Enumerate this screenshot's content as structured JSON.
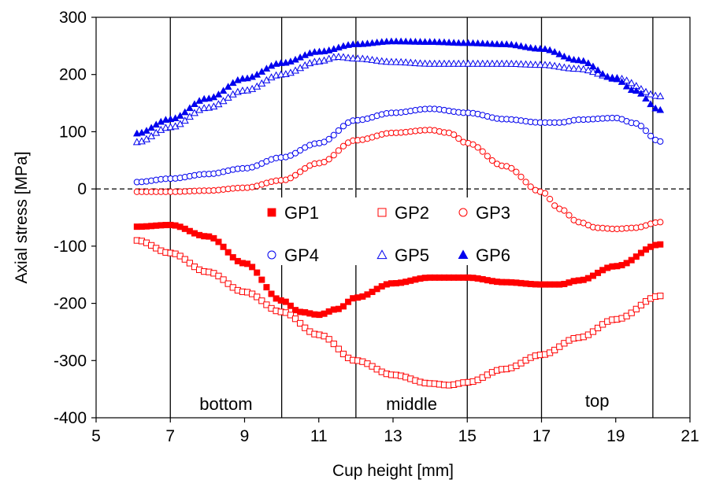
{
  "chart_data": {
    "type": "scatter",
    "title": "",
    "xlabel": "Cup height [mm]",
    "ylabel": "Axial stress [MPa]",
    "xlim": [
      5,
      21
    ],
    "ylim": [
      -400,
      300
    ],
    "xticks": [
      5,
      7,
      9,
      11,
      13,
      15,
      17,
      19,
      21
    ],
    "yticks": [
      300,
      200,
      100,
      0,
      -100,
      -200,
      -300,
      -400
    ],
    "vertical_lines": [
      7,
      10,
      12,
      15,
      17,
      20
    ],
    "zero_line": {
      "y": 0,
      "style": "dashed"
    },
    "regions": [
      {
        "label": "bottom",
        "x": 8.5,
        "y": -375
      },
      {
        "label": "middle",
        "x": 13.5,
        "y": -375
      },
      {
        "label": "top",
        "x": 18.5,
        "y": -370
      }
    ],
    "legend": {
      "placement": "center",
      "columns": 3
    },
    "x_range": [
      6.1,
      20.2
    ],
    "point_count": 110,
    "series": [
      {
        "name": "GP1",
        "color": "#ff0000",
        "marker": "square-filled",
        "knots": [
          [
            6.1,
            -66
          ],
          [
            7,
            -63
          ],
          [
            8,
            -83
          ],
          [
            9,
            -130
          ],
          [
            10,
            -195
          ],
          [
            10.5,
            -215
          ],
          [
            11,
            -220
          ],
          [
            11.5,
            -210
          ],
          [
            12,
            -190
          ],
          [
            13,
            -165
          ],
          [
            14,
            -155
          ],
          [
            15,
            -155
          ],
          [
            16,
            -163
          ],
          [
            17,
            -167
          ],
          [
            17.5,
            -167
          ],
          [
            18,
            -160
          ],
          [
            19,
            -135
          ],
          [
            20.2,
            -97
          ]
        ]
      },
      {
        "name": "GP2",
        "color": "#ff0000",
        "marker": "square-open",
        "knots": [
          [
            6.1,
            -90
          ],
          [
            7,
            -112
          ],
          [
            8,
            -145
          ],
          [
            9,
            -180
          ],
          [
            10,
            -215
          ],
          [
            11,
            -255
          ],
          [
            12,
            -300
          ],
          [
            13,
            -325
          ],
          [
            14,
            -340
          ],
          [
            14.5,
            -343
          ],
          [
            15,
            -338
          ],
          [
            16,
            -315
          ],
          [
            17,
            -290
          ],
          [
            18,
            -260
          ],
          [
            19,
            -228
          ],
          [
            20.2,
            -187
          ]
        ]
      },
      {
        "name": "GP3",
        "color": "#ff0000",
        "marker": "circle-open",
        "knots": [
          [
            6.1,
            -5
          ],
          [
            7,
            -5
          ],
          [
            8,
            -3
          ],
          [
            9,
            2
          ],
          [
            10,
            15
          ],
          [
            11,
            45
          ],
          [
            12,
            85
          ],
          [
            13,
            98
          ],
          [
            14,
            103
          ],
          [
            14.5,
            98
          ],
          [
            15,
            80
          ],
          [
            16,
            40
          ],
          [
            17,
            -5
          ],
          [
            17.5,
            -35
          ],
          [
            18,
            -58
          ],
          [
            18.5,
            -68
          ],
          [
            19,
            -70
          ],
          [
            19.5,
            -68
          ],
          [
            20.2,
            -58
          ]
        ]
      },
      {
        "name": "GP4",
        "color": "#0000ee",
        "marker": "circle-open",
        "knots": [
          [
            6.1,
            12
          ],
          [
            7,
            18
          ],
          [
            8,
            26
          ],
          [
            9,
            36
          ],
          [
            10,
            55
          ],
          [
            11,
            80
          ],
          [
            12,
            120
          ],
          [
            13,
            133
          ],
          [
            14,
            140
          ],
          [
            15,
            133
          ],
          [
            16,
            122
          ],
          [
            17,
            116
          ],
          [
            17.5,
            116
          ],
          [
            18,
            121
          ],
          [
            19,
            124
          ],
          [
            19.5,
            115
          ],
          [
            20.2,
            83
          ]
        ]
      },
      {
        "name": "GP5",
        "color": "#0000ee",
        "marker": "triangle-open",
        "knots": [
          [
            6.1,
            82
          ],
          [
            7,
            108
          ],
          [
            8,
            142
          ],
          [
            9,
            172
          ],
          [
            10,
            200
          ],
          [
            11,
            223
          ],
          [
            11.5,
            231
          ],
          [
            12,
            228
          ],
          [
            13,
            222
          ],
          [
            14,
            219
          ],
          [
            15,
            219
          ],
          [
            16,
            219
          ],
          [
            17,
            217
          ],
          [
            18,
            210
          ],
          [
            19,
            194
          ],
          [
            20.2,
            162
          ]
        ]
      },
      {
        "name": "GP6",
        "color": "#0000ee",
        "marker": "triangle-filled",
        "knots": [
          [
            6.1,
            97
          ],
          [
            7,
            122
          ],
          [
            8,
            158
          ],
          [
            9,
            193
          ],
          [
            10,
            220
          ],
          [
            11,
            240
          ],
          [
            12,
            253
          ],
          [
            13,
            258
          ],
          [
            14,
            257
          ],
          [
            15,
            255
          ],
          [
            16,
            253
          ],
          [
            17,
            245
          ],
          [
            18,
            225
          ],
          [
            19,
            192
          ],
          [
            19.5,
            172
          ],
          [
            20.2,
            138
          ]
        ]
      }
    ]
  }
}
